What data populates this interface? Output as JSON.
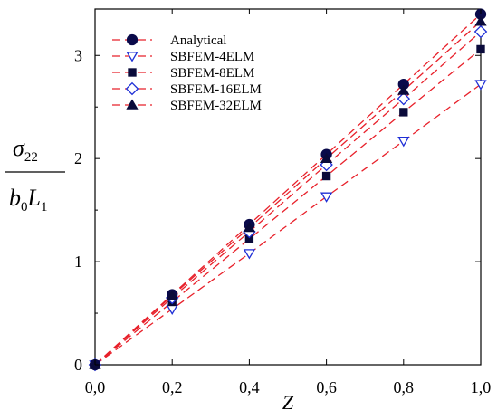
{
  "chart_data": {
    "type": "line",
    "title": "",
    "xlabel": "Z",
    "ylabel": {
      "numerator_symbol": "σ",
      "numerator_sub": "22",
      "denominator_b": "b",
      "denominator_b_sub": "0",
      "denominator_L": "L",
      "denominator_L_sub": "1"
    },
    "xlim": [
      0,
      1
    ],
    "ylim": [
      0,
      3.45
    ],
    "x_ticks": [
      0,
      0.2,
      0.4,
      0.6,
      0.8,
      1.0
    ],
    "x_tick_labels": [
      "0,0",
      "0,2",
      "0,4",
      "0,6",
      "0,8",
      "1,0"
    ],
    "y_ticks": [
      0,
      1,
      2,
      3
    ],
    "y_tick_labels": [
      "0",
      "1",
      "2",
      "3"
    ],
    "grid": false,
    "legend_position": "top-left",
    "line_color": "#e8202a",
    "line_style": "dashed",
    "x": [
      0,
      0.2,
      0.4,
      0.6,
      0.8,
      1.0
    ],
    "series": [
      {
        "name": "Analytical",
        "marker": "circle-filled",
        "marker_color": "#0a0a4a",
        "values": [
          0,
          0.68,
          1.36,
          2.04,
          2.72,
          3.4
        ]
      },
      {
        "name": "SBFEM-4ELM",
        "marker": "triangle-down-open",
        "marker_color": "#1f2fd6",
        "values": [
          0,
          0.54,
          1.08,
          1.63,
          2.17,
          2.72
        ]
      },
      {
        "name": "SBFEM-8ELM",
        "marker": "square-filled",
        "marker_color": "#0a0a3a",
        "values": [
          0,
          0.61,
          1.22,
          1.83,
          2.45,
          3.06
        ]
      },
      {
        "name": "SBFEM-16ELM",
        "marker": "diamond-open",
        "marker_color": "#1f2fd6",
        "values": [
          0,
          0.65,
          1.29,
          1.94,
          2.58,
          3.23
        ]
      },
      {
        "name": "SBFEM-32ELM",
        "marker": "triangle-up-filled",
        "marker_color": "#0a0a3a",
        "values": [
          0,
          0.67,
          1.33,
          2.0,
          2.66,
          3.33
        ]
      }
    ]
  }
}
